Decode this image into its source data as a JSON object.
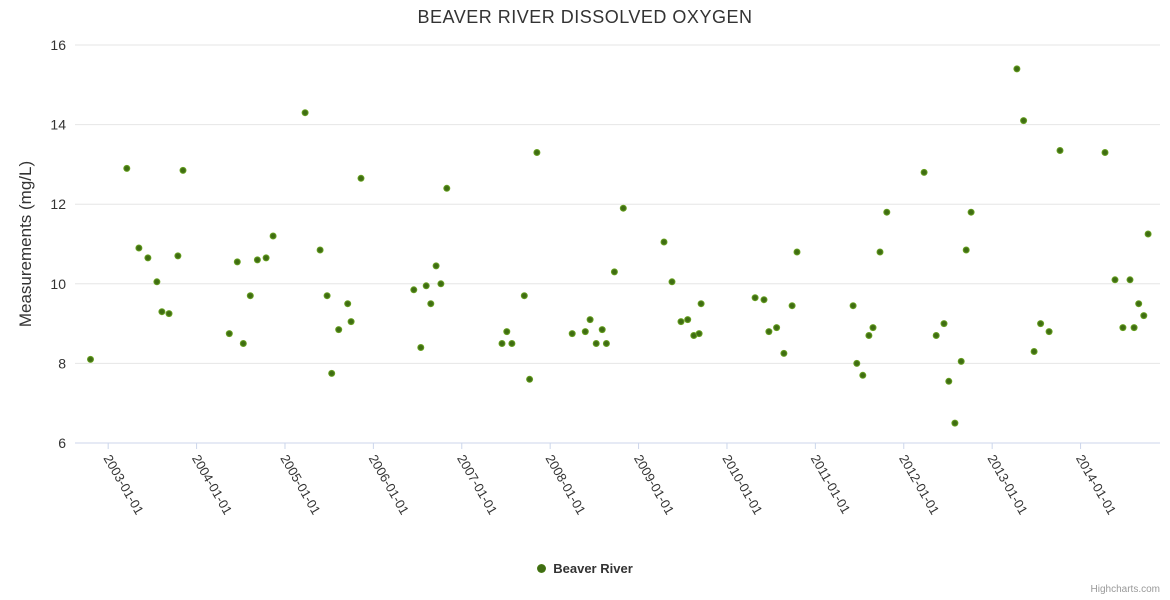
{
  "chart": {
    "title": "BEAVER RIVER DISSOLVED OXYGEN",
    "credits": "Highcharts.com"
  },
  "legend": {
    "items": [
      {
        "label": "Beaver River"
      }
    ]
  },
  "chart_data": {
    "type": "scatter",
    "title": "BEAVER RIVER DISSOLVED OXYGEN",
    "xlabel": "",
    "ylabel": "Measurements (mg/L)",
    "ylim": [
      6,
      16
    ],
    "y_ticks": [
      6,
      8,
      10,
      12,
      14,
      16
    ],
    "x_ticks": [
      "2003-01-01",
      "2004-01-01",
      "2005-01-01",
      "2006-01-01",
      "2007-01-01",
      "2008-01-01",
      "2009-01-01",
      "2010-01-01",
      "2011-01-01",
      "2012-01-01",
      "2013-01-01",
      "2014-01-01"
    ],
    "x_range": [
      "2002-08-17",
      "2014-11-25"
    ],
    "grid": true,
    "legend_position": "bottom-center",
    "series": [
      {
        "name": "Beaver River",
        "color": "#76b229",
        "color_center": "#3f6d12",
        "points": [
          {
            "date": "2002-10-20",
            "value": 8.1
          },
          {
            "date": "2003-03-19",
            "value": 12.9
          },
          {
            "date": "2003-05-08",
            "value": 10.9
          },
          {
            "date": "2003-06-14",
            "value": 10.65
          },
          {
            "date": "2003-07-21",
            "value": 10.05
          },
          {
            "date": "2003-08-11",
            "value": 9.3
          },
          {
            "date": "2003-09-09",
            "value": 9.25
          },
          {
            "date": "2003-10-16",
            "value": 10.7
          },
          {
            "date": "2003-11-06",
            "value": 12.85
          },
          {
            "date": "2004-05-15",
            "value": 8.75
          },
          {
            "date": "2004-06-17",
            "value": 10.55
          },
          {
            "date": "2004-07-12",
            "value": 8.5
          },
          {
            "date": "2004-08-10",
            "value": 9.7
          },
          {
            "date": "2004-09-08",
            "value": 10.6
          },
          {
            "date": "2004-10-14",
            "value": 10.65
          },
          {
            "date": "2004-11-12",
            "value": 11.2
          },
          {
            "date": "2005-03-25",
            "value": 14.3
          },
          {
            "date": "2005-05-26",
            "value": 10.85
          },
          {
            "date": "2005-06-24",
            "value": 9.7
          },
          {
            "date": "2005-07-13",
            "value": 7.75
          },
          {
            "date": "2005-08-11",
            "value": 8.85
          },
          {
            "date": "2005-09-17",
            "value": 9.5
          },
          {
            "date": "2005-10-01",
            "value": 9.05
          },
          {
            "date": "2005-11-11",
            "value": 12.65
          },
          {
            "date": "2006-06-17",
            "value": 9.85
          },
          {
            "date": "2006-07-16",
            "value": 8.4
          },
          {
            "date": "2006-08-07",
            "value": 9.95
          },
          {
            "date": "2006-08-26",
            "value": 9.5
          },
          {
            "date": "2006-09-17",
            "value": 10.45
          },
          {
            "date": "2006-10-07",
            "value": 10.0
          },
          {
            "date": "2006-10-31",
            "value": 12.4
          },
          {
            "date": "2007-06-16",
            "value": 8.5
          },
          {
            "date": "2007-07-06",
            "value": 8.8
          },
          {
            "date": "2007-07-27",
            "value": 8.5
          },
          {
            "date": "2007-09-16",
            "value": 9.7
          },
          {
            "date": "2007-10-08",
            "value": 7.6
          },
          {
            "date": "2007-11-07",
            "value": 13.3
          },
          {
            "date": "2008-04-01",
            "value": 8.75
          },
          {
            "date": "2008-05-25",
            "value": 8.8
          },
          {
            "date": "2008-06-14",
            "value": 9.1
          },
          {
            "date": "2008-07-09",
            "value": 8.5
          },
          {
            "date": "2008-08-03",
            "value": 8.85
          },
          {
            "date": "2008-08-20",
            "value": 8.5
          },
          {
            "date": "2008-09-22",
            "value": 10.3
          },
          {
            "date": "2008-10-29",
            "value": 11.9
          },
          {
            "date": "2009-04-16",
            "value": 11.05
          },
          {
            "date": "2009-05-19",
            "value": 10.05
          },
          {
            "date": "2009-06-25",
            "value": 9.05
          },
          {
            "date": "2009-07-23",
            "value": 9.1
          },
          {
            "date": "2009-08-17",
            "value": 8.7
          },
          {
            "date": "2009-09-08",
            "value": 8.75
          },
          {
            "date": "2009-09-16",
            "value": 9.5
          },
          {
            "date": "2010-04-27",
            "value": 9.65
          },
          {
            "date": "2010-06-03",
            "value": 9.6
          },
          {
            "date": "2010-06-23",
            "value": 8.8
          },
          {
            "date": "2010-07-25",
            "value": 8.9
          },
          {
            "date": "2010-08-24",
            "value": 8.25
          },
          {
            "date": "2010-09-27",
            "value": 9.45
          },
          {
            "date": "2010-10-17",
            "value": 10.8
          },
          {
            "date": "2011-06-06",
            "value": 9.45
          },
          {
            "date": "2011-06-21",
            "value": 8.0
          },
          {
            "date": "2011-07-16",
            "value": 7.7
          },
          {
            "date": "2011-08-10",
            "value": 8.7
          },
          {
            "date": "2011-08-27",
            "value": 8.9
          },
          {
            "date": "2011-09-25",
            "value": 10.8
          },
          {
            "date": "2011-10-23",
            "value": 11.8
          },
          {
            "date": "2012-03-25",
            "value": 12.8
          },
          {
            "date": "2012-05-14",
            "value": 8.7
          },
          {
            "date": "2012-06-15",
            "value": 9.0
          },
          {
            "date": "2012-07-05",
            "value": 7.55
          },
          {
            "date": "2012-07-30",
            "value": 6.5
          },
          {
            "date": "2012-08-25",
            "value": 8.05
          },
          {
            "date": "2012-09-15",
            "value": 10.85
          },
          {
            "date": "2012-10-05",
            "value": 11.8
          },
          {
            "date": "2013-04-13",
            "value": 15.4
          },
          {
            "date": "2013-05-11",
            "value": 14.1
          },
          {
            "date": "2013-06-23",
            "value": 8.3
          },
          {
            "date": "2013-07-20",
            "value": 9.0
          },
          {
            "date": "2013-08-24",
            "value": 8.8
          },
          {
            "date": "2013-10-08",
            "value": 13.35
          },
          {
            "date": "2014-04-12",
            "value": 13.3
          },
          {
            "date": "2014-05-23",
            "value": 10.1
          },
          {
            "date": "2014-06-25",
            "value": 8.9
          },
          {
            "date": "2014-07-24",
            "value": 10.1
          },
          {
            "date": "2014-08-10",
            "value": 8.9
          },
          {
            "date": "2014-08-29",
            "value": 9.5
          },
          {
            "date": "2014-09-19",
            "value": 9.2
          },
          {
            "date": "2014-10-07",
            "value": 11.25
          }
        ]
      }
    ]
  }
}
